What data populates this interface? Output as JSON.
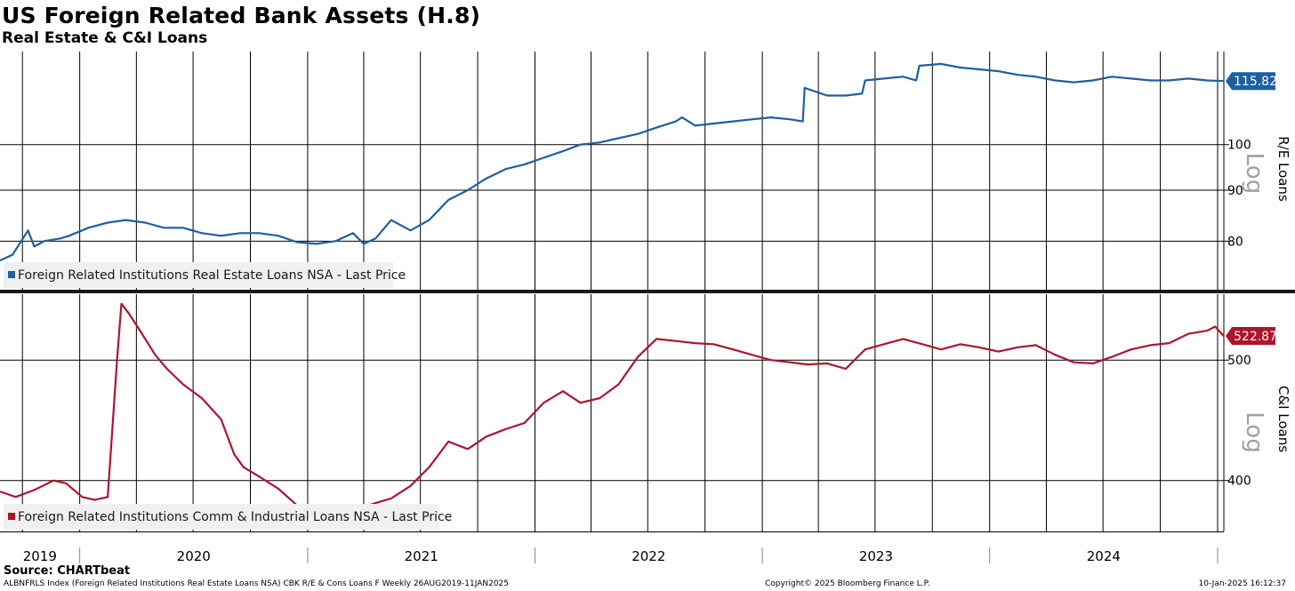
{
  "title": "US Foreign Related Bank Assets (H.8)",
  "subtitle": "Real Estate & C&I Loans",
  "source": "Source: CHARTbeat",
  "footer": {
    "left": "ALBNFRLS Index (Foreign Related Institutions Real Estate Loans NSA) CBK R/E & Cons Loans F  Weekly 26AUG2019-11JAN2025",
    "center": "Copyright© 2025 Bloomberg Finance L.P.",
    "right": "10-Jan-2025 16:12:37"
  },
  "colors": {
    "re": "#1f5fa0",
    "ci": "#b0142c",
    "grid": "#000000"
  },
  "chart_data": [
    {
      "type": "line",
      "title": "",
      "ylabel": "R/E Loans",
      "scale": "log",
      "scale_label": "Log",
      "yticks": [
        80,
        90,
        100
      ],
      "ylim": [
        71.5,
        124
      ],
      "last_price": "115.82",
      "x_period": [
        "2019-08-26",
        "2025-01-11"
      ],
      "legend": "Foreign Related Institutions Real Estate Loans NSA - Last Price",
      "series": [
        {
          "name": "Foreign Related Institutions Real Estate Loans NSA - Last Price",
          "x": [
            "2019-08-26",
            "2019-09-15",
            "2019-10-10",
            "2019-10-20",
            "2019-11-05",
            "2019-12-01",
            "2019-12-15",
            "2020-01-15",
            "2020-02-15",
            "2020-03-15",
            "2020-04-15",
            "2020-05-15",
            "2020-06-15",
            "2020-07-15",
            "2020-08-15",
            "2020-09-15",
            "2020-10-15",
            "2020-11-15",
            "2020-12-15",
            "2021-01-15",
            "2021-02-15",
            "2021-03-15",
            "2021-04-01",
            "2021-04-20",
            "2021-05-15",
            "2021-06-15",
            "2021-07-15",
            "2021-08-15",
            "2021-09-15",
            "2021-10-15",
            "2021-11-15",
            "2021-12-15",
            "2022-01-15",
            "2022-02-15",
            "2022-03-15",
            "2022-04-15",
            "2022-05-15",
            "2022-06-15",
            "2022-07-15",
            "2022-08-15",
            "2022-08-25",
            "2022-09-15",
            "2022-10-15",
            "2022-11-15",
            "2022-12-15",
            "2023-01-15",
            "2023-02-15",
            "2023-03-07",
            "2023-03-10",
            "2023-04-15",
            "2023-05-15",
            "2023-06-10",
            "2023-06-15",
            "2023-07-15",
            "2023-08-15",
            "2023-09-05",
            "2023-09-10",
            "2023-10-15",
            "2023-11-15",
            "2023-12-15",
            "2024-01-15",
            "2024-02-15",
            "2024-03-15",
            "2024-04-15",
            "2024-05-15",
            "2024-06-15",
            "2024-07-15",
            "2024-08-15",
            "2024-09-15",
            "2024-10-15",
            "2024-11-15",
            "2024-12-15",
            "2025-01-11"
          ],
          "values": [
            76.5,
            77.5,
            82.0,
            79.0,
            80.0,
            80.5,
            81.0,
            82.5,
            83.5,
            84.0,
            83.5,
            82.5,
            82.5,
            81.5,
            81.0,
            81.5,
            81.5,
            81.0,
            79.8,
            79.5,
            80.0,
            81.5,
            79.5,
            80.5,
            84.0,
            82.0,
            84.0,
            88.0,
            90.0,
            92.5,
            94.5,
            95.5,
            97.0,
            98.5,
            100.0,
            100.5,
            101.5,
            102.5,
            104.0,
            105.5,
            106.5,
            104.5,
            105.0,
            105.5,
            106.0,
            106.5,
            106.0,
            105.5,
            114.0,
            112.0,
            112.0,
            112.5,
            116.0,
            116.5,
            117.0,
            116.0,
            120.0,
            120.5,
            119.5,
            119.0,
            118.5,
            117.5,
            117.0,
            116.0,
            115.5,
            116.0,
            117.0,
            116.5,
            116.0,
            116.0,
            116.5,
            116.0,
            115.82
          ]
        }
      ]
    },
    {
      "type": "line",
      "title": "",
      "ylabel": "C&I Loans",
      "scale": "log",
      "scale_label": "Log",
      "yticks": [
        400,
        500
      ],
      "ylim": [
        364,
        565
      ],
      "last_price": "522.87",
      "x_period": [
        "2019-08-26",
        "2025-01-11"
      ],
      "legend": "Foreign Related Institutions Comm & Industrial Loans NSA - Last Price",
      "series": [
        {
          "name": "Foreign Related Institutions Comm & Industrial Loans NSA - Last Price",
          "x": [
            "2019-08-26",
            "2019-09-20",
            "2019-10-20",
            "2019-11-20",
            "2019-12-10",
            "2020-01-05",
            "2020-01-25",
            "2020-02-15",
            "2020-03-01",
            "2020-03-08",
            "2020-03-20",
            "2020-04-10",
            "2020-05-01",
            "2020-05-20",
            "2020-06-15",
            "2020-07-15",
            "2020-08-15",
            "2020-09-05",
            "2020-09-20",
            "2020-10-15",
            "2020-11-15",
            "2020-12-15",
            "2021-01-15",
            "2021-02-15",
            "2021-03-15",
            "2021-04-15",
            "2021-05-15",
            "2021-06-15",
            "2021-07-15",
            "2021-08-15",
            "2021-09-15",
            "2021-10-15",
            "2021-11-15",
            "2021-12-15",
            "2022-01-15",
            "2022-02-15",
            "2022-03-15",
            "2022-04-15",
            "2022-05-15",
            "2022-06-15",
            "2022-07-15",
            "2022-08-15",
            "2022-09-15",
            "2022-10-15",
            "2022-11-15",
            "2022-12-15",
            "2023-01-15",
            "2023-02-15",
            "2023-03-15",
            "2023-04-15",
            "2023-05-15",
            "2023-06-15",
            "2023-07-15",
            "2023-08-15",
            "2023-09-15",
            "2023-10-15",
            "2023-11-15",
            "2023-12-15",
            "2024-01-15",
            "2024-02-15",
            "2024-03-15",
            "2024-04-15",
            "2024-05-15",
            "2024-06-15",
            "2024-07-15",
            "2024-08-15",
            "2024-09-15",
            "2024-10-15",
            "2024-11-15",
            "2024-12-15",
            "2024-12-28",
            "2025-01-11"
          ],
          "values": [
            392,
            388,
            393,
            400,
            398,
            388,
            386,
            388,
            500,
            555,
            545,
            525,
            505,
            492,
            478,
            466,
            448,
            420,
            410,
            403,
            394,
            382,
            376,
            374,
            378,
            383,
            387,
            396,
            410,
            430,
            424,
            434,
            440,
            445,
            462,
            472,
            462,
            466,
            478,
            503,
            520,
            518,
            516,
            515,
            510,
            505,
            500,
            498,
            496,
            497,
            492,
            510,
            515,
            520,
            515,
            510,
            515,
            512,
            508,
            512,
            514,
            505,
            498,
            497,
            503,
            510,
            514,
            516,
            525,
            528,
            532,
            522.87
          ]
        }
      ]
    }
  ],
  "x_axis": {
    "years": [
      "2019",
      "2020",
      "2021",
      "2022",
      "2023",
      "2024"
    ]
  }
}
